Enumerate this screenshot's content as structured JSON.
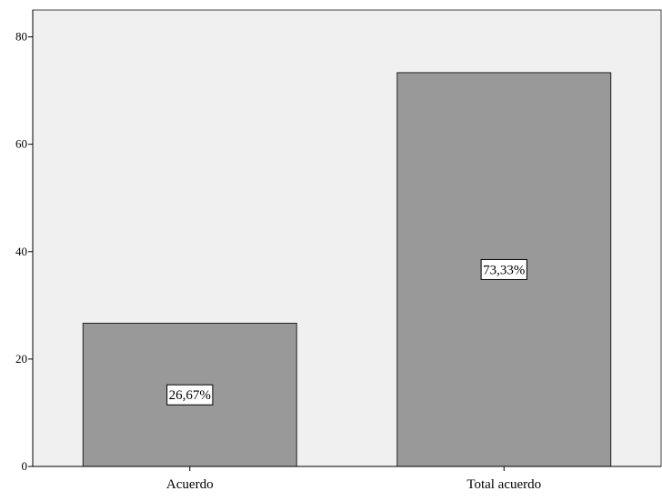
{
  "chart_data": {
    "type": "bar",
    "title": "",
    "xlabel": "",
    "ylabel": "",
    "categories": [
      "Acuerdo",
      "Total acuerdo"
    ],
    "values": [
      26.67,
      73.33
    ],
    "data_labels": [
      "26,67%",
      "73,33%"
    ],
    "ylim": [
      0,
      85
    ],
    "yticks": [
      0,
      20,
      40,
      60,
      80
    ],
    "ytick_labels": [
      "0",
      "20",
      "40",
      "60",
      "80"
    ],
    "grid": false,
    "legend": "none"
  },
  "colors": {
    "plot_background": "#f0f0f0",
    "bar_fill": "#999999",
    "bar_stroke": "#222222",
    "axis": "#000000",
    "label_box_fill": "#ffffff"
  }
}
